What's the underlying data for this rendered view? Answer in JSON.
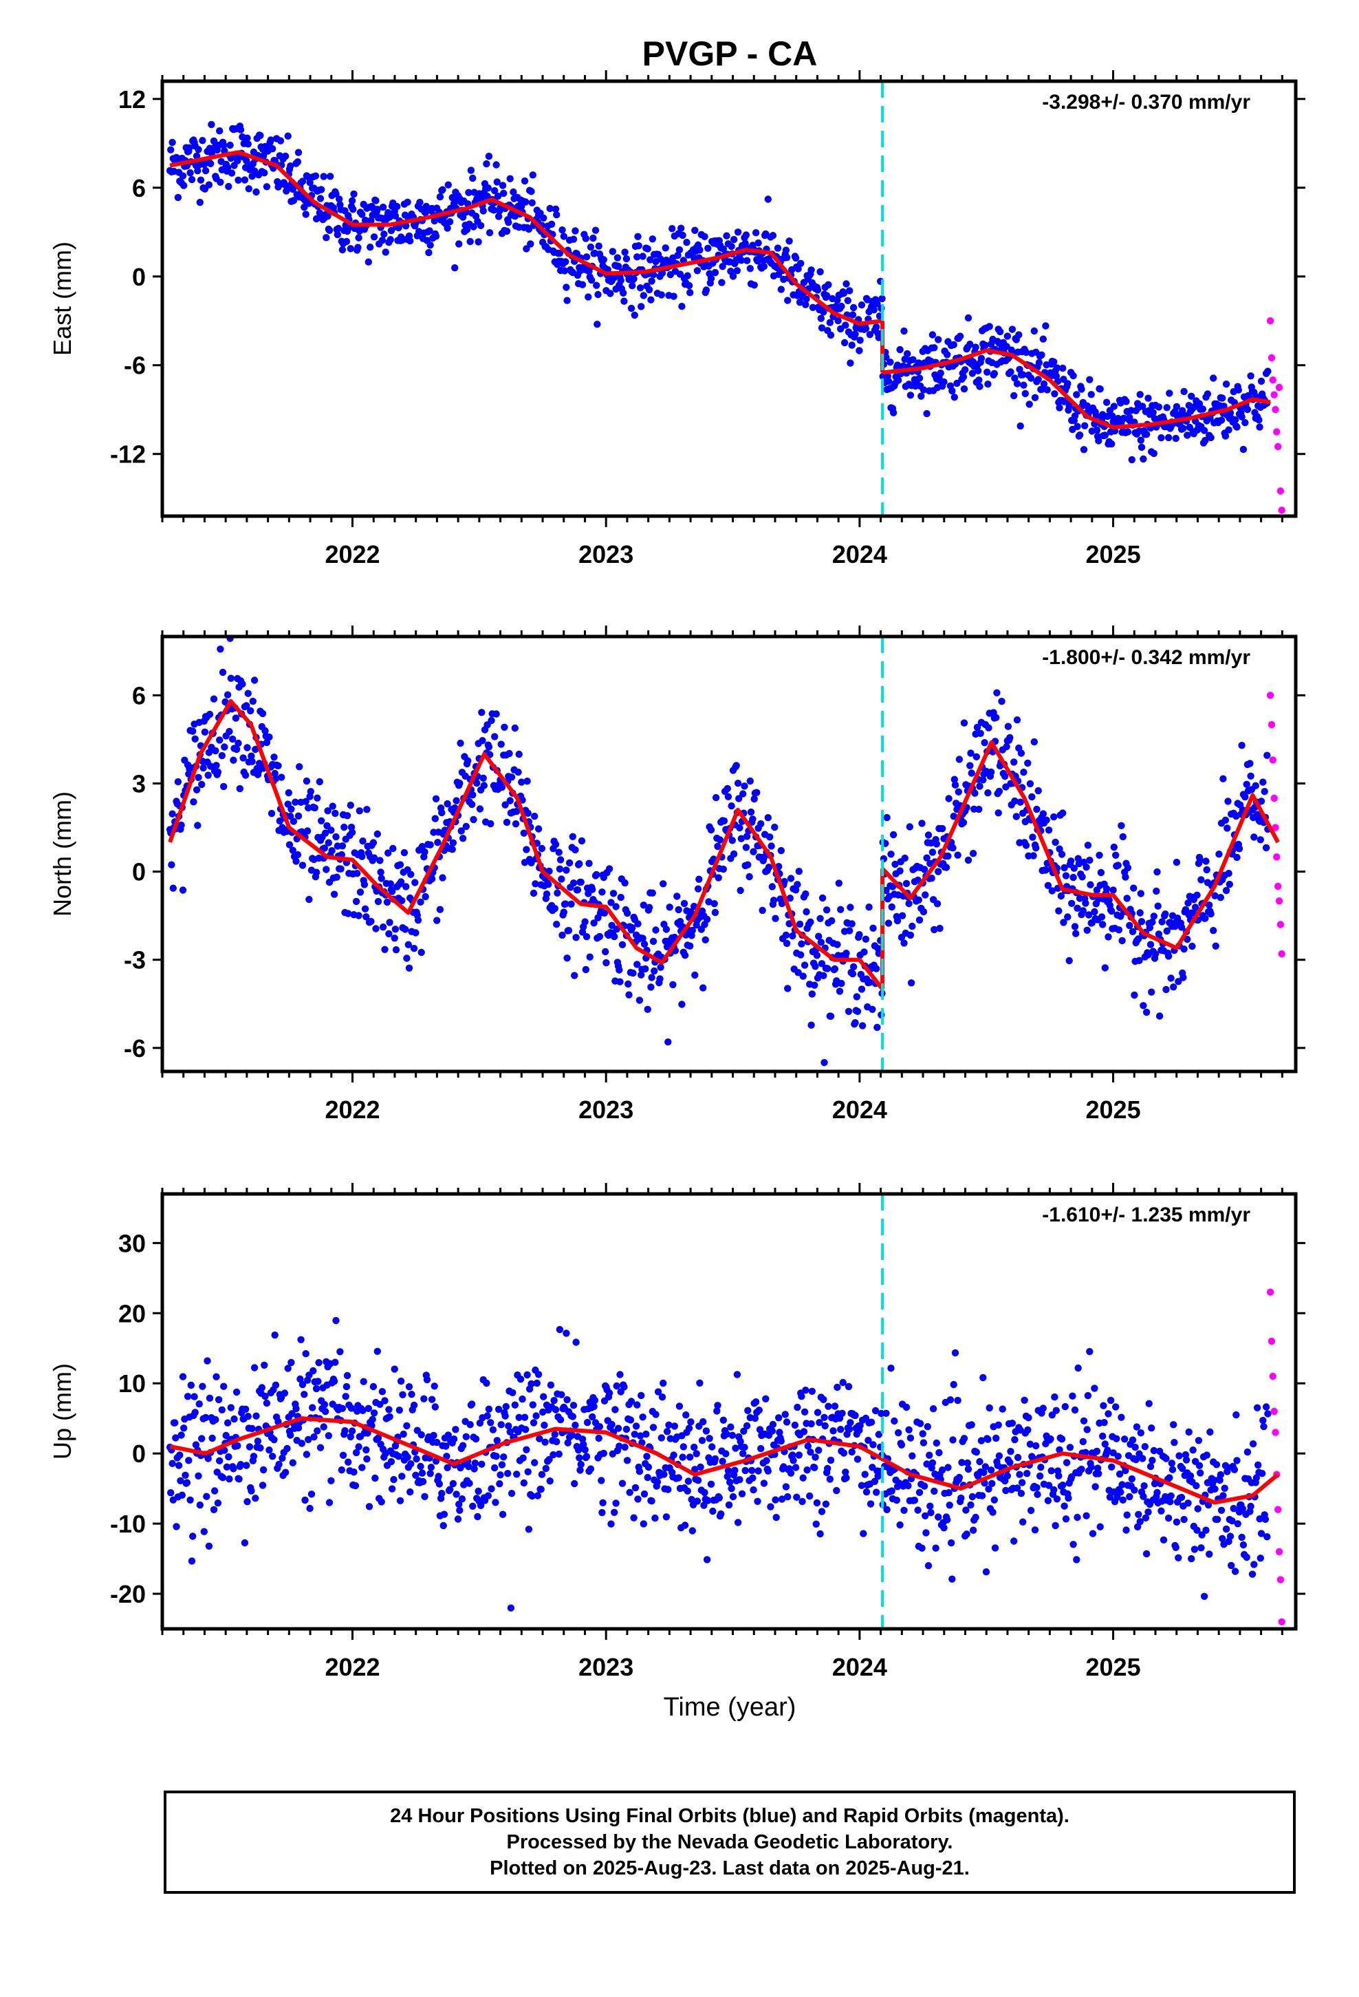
{
  "title": "PVGP - CA",
  "colors": {
    "final_orbits": "#0000ff",
    "rapid_orbits": "#ff00ff",
    "model": "#ff0000",
    "event_line": "#00e0e0",
    "frame": "#000000"
  },
  "x_axis": {
    "label": "Time (year)",
    "range": [
      2021.25,
      2025.72
    ],
    "ticks": [
      2022,
      2023,
      2024,
      2025
    ],
    "tick_labels": [
      "2022",
      "2023",
      "2024",
      "2025"
    ]
  },
  "chart_data": [
    {
      "type": "scatter",
      "component": "east",
      "ylabel": "East (mm)",
      "ylim": [
        -16.2,
        13.2
      ],
      "yticks": [
        -12,
        -6,
        0,
        6,
        12
      ],
      "ytick_labels": [
        "-12",
        "-6",
        "0",
        "6",
        "12"
      ],
      "rate_text": "-3.298+/- 0.370 mm/yr",
      "event_line_x": 2024.09,
      "model_series": [
        {
          "x": [
            2021.28,
            2021.4,
            2021.55,
            2021.7,
            2021.85,
            2022.0,
            2022.15,
            2022.3,
            2022.45,
            2022.55,
            2022.7,
            2022.85,
            2023.0,
            2023.15,
            2023.3,
            2023.45,
            2023.55,
            2023.65,
            2023.75,
            2023.9,
            2024.0,
            2024.09
          ],
          "y": [
            7.5,
            7.9,
            8.4,
            7.5,
            5.0,
            3.5,
            3.5,
            4.0,
            4.6,
            5.2,
            4.0,
            1.5,
            0.2,
            0.3,
            0.8,
            1.3,
            1.8,
            1.6,
            -0.5,
            -2.5,
            -3.2,
            -3.0
          ]
        },
        {
          "x": [
            2024.09,
            2024.25,
            2024.4,
            2024.5,
            2024.6,
            2024.75,
            2024.9,
            2025.0,
            2025.15,
            2025.3,
            2025.45,
            2025.55,
            2025.62
          ],
          "y": [
            -6.5,
            -6.2,
            -5.6,
            -5.0,
            -5.3,
            -7.0,
            -9.5,
            -10.2,
            -10.0,
            -9.6,
            -9.0,
            -8.3,
            -8.5
          ]
        }
      ],
      "rapid_points": {
        "x": [
          2025.62,
          2025.625,
          2025.63,
          2025.635,
          2025.64,
          2025.645,
          2025.65,
          2025.655,
          2025.66,
          2025.665
        ],
        "y": [
          -3.0,
          -5.5,
          -7.0,
          -8.0,
          -9.0,
          -10.5,
          -11.5,
          -7.5,
          -14.5,
          -15.8
        ]
      },
      "final_scatter_sd": 1.1
    },
    {
      "type": "scatter",
      "component": "north",
      "ylabel": "North (mm)",
      "ylim": [
        -6.8,
        8.0
      ],
      "yticks": [
        -6,
        -3,
        0,
        3,
        6
      ],
      "ytick_labels": [
        "-6",
        "-3",
        "0",
        "3",
        "6"
      ],
      "rate_text": "-1.800+/- 0.342 mm/yr",
      "event_line_x": 2024.09,
      "model_series": [
        {
          "x": [
            2021.28,
            2021.4,
            2021.52,
            2021.6,
            2021.75,
            2021.9,
            2022.0,
            2022.1,
            2022.22,
            2022.35,
            2022.52,
            2022.65,
            2022.75,
            2022.9,
            2023.0,
            2023.12,
            2023.22,
            2023.35,
            2023.52,
            2023.65,
            2023.75,
            2023.9,
            2024.0,
            2024.09
          ],
          "y": [
            1.0,
            4.0,
            5.8,
            5.0,
            1.5,
            0.5,
            0.4,
            -0.5,
            -1.4,
            0.8,
            4.0,
            2.5,
            0.0,
            -1.1,
            -1.2,
            -2.6,
            -3.1,
            -1.5,
            2.1,
            0.5,
            -2.0,
            -3.0,
            -3.0,
            -4.0
          ]
        },
        {
          "x": [
            2024.09,
            2024.2,
            2024.32,
            2024.52,
            2024.65,
            2024.8,
            2024.92,
            2025.0,
            2025.12,
            2025.25,
            2025.4,
            2025.55,
            2025.65
          ],
          "y": [
            0.1,
            -0.9,
            0.5,
            4.4,
            2.5,
            -0.6,
            -0.8,
            -0.8,
            -2.1,
            -2.6,
            -0.5,
            2.6,
            1.0
          ]
        }
      ],
      "rapid_points": {
        "x": [
          2025.62,
          2025.625,
          2025.63,
          2025.635,
          2025.64,
          2025.645,
          2025.65,
          2025.655,
          2025.66,
          2025.665
        ],
        "y": [
          6.0,
          5.0,
          3.8,
          2.5,
          1.5,
          0.5,
          -0.5,
          -1.0,
          -1.8,
          -2.8
        ]
      },
      "final_scatter_sd": 1.0
    },
    {
      "type": "scatter",
      "component": "up",
      "ylabel": "Up (mm)",
      "ylim": [
        -25,
        37
      ],
      "yticks": [
        -20,
        -10,
        0,
        10,
        20,
        30
      ],
      "ytick_labels": [
        "-20",
        "-10",
        "0",
        "10",
        "20",
        "30"
      ],
      "rate_text": "-1.610+/- 1.235 mm/yr",
      "event_line_x": 2024.09,
      "model_series": [
        {
          "x": [
            2021.28,
            2021.42,
            2021.55,
            2021.8,
            2022.0,
            2022.2,
            2022.4,
            2022.6,
            2022.8,
            2023.0,
            2023.2,
            2023.35,
            2023.55,
            2023.8,
            2024.0,
            2024.2,
            2024.4,
            2024.6,
            2024.8,
            2025.0,
            2025.2,
            2025.4,
            2025.55,
            2025.65
          ],
          "y": [
            1.0,
            0.0,
            2.0,
            5.0,
            4.5,
            1.5,
            -1.5,
            1.5,
            3.5,
            3.0,
            0.0,
            -3.0,
            -1.0,
            2.0,
            1.0,
            -3.0,
            -5.0,
            -2.0,
            0.0,
            -1.0,
            -4.0,
            -7.0,
            -6.0,
            -3.0
          ]
        }
      ],
      "rapid_points": {
        "x": [
          2025.62,
          2025.625,
          2025.63,
          2025.635,
          2025.64,
          2025.645,
          2025.65,
          2025.655,
          2025.66,
          2025.665
        ],
        "y": [
          23.0,
          16.0,
          11.0,
          6.0,
          3.0,
          -3.0,
          -8.0,
          -14.0,
          -18.0,
          -24.0
        ]
      },
      "final_scatter_sd": 5.0
    }
  ],
  "caption": {
    "line1": "24 Hour Positions Using Final Orbits (blue) and Rapid Orbits (magenta).",
    "line2": "Processed by the Nevada Geodetic Laboratory.",
    "line3": "Plotted on 2025-Aug-23. Last data on 2025-Aug-21."
  }
}
